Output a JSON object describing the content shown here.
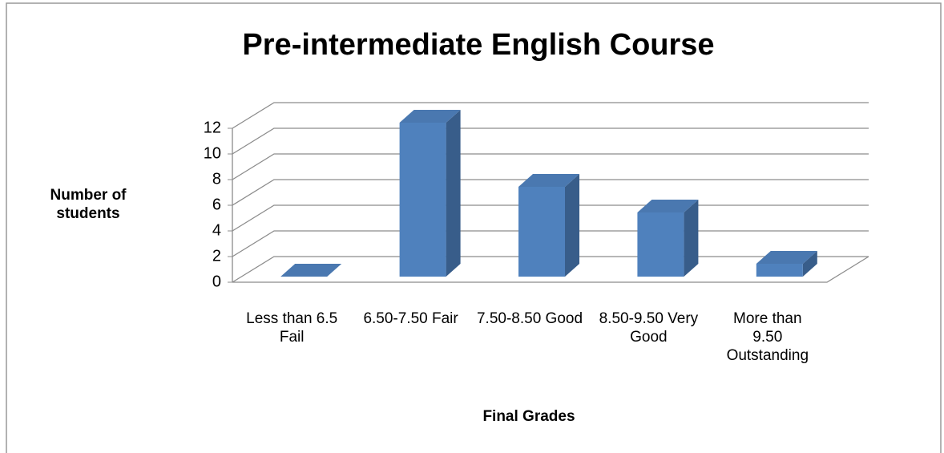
{
  "chart_data": {
    "type": "bar3d",
    "title": "Pre-intermediate English Course",
    "y_label": "Number of students",
    "x_label": "Final Grades",
    "categories": [
      "Less than 6.5 Fail",
      "6.50-7.50 Fair",
      "7.50-8.50 Good",
      "8.50-9.50 Very Good",
      "More than 9.50 Outstanding"
    ],
    "values": [
      0,
      12,
      7,
      5,
      1
    ],
    "color": "#4f81bd",
    "ylim": [
      0,
      12
    ],
    "yticks": [
      0,
      2,
      4,
      6,
      8,
      10,
      12
    ],
    "grid": true
  }
}
